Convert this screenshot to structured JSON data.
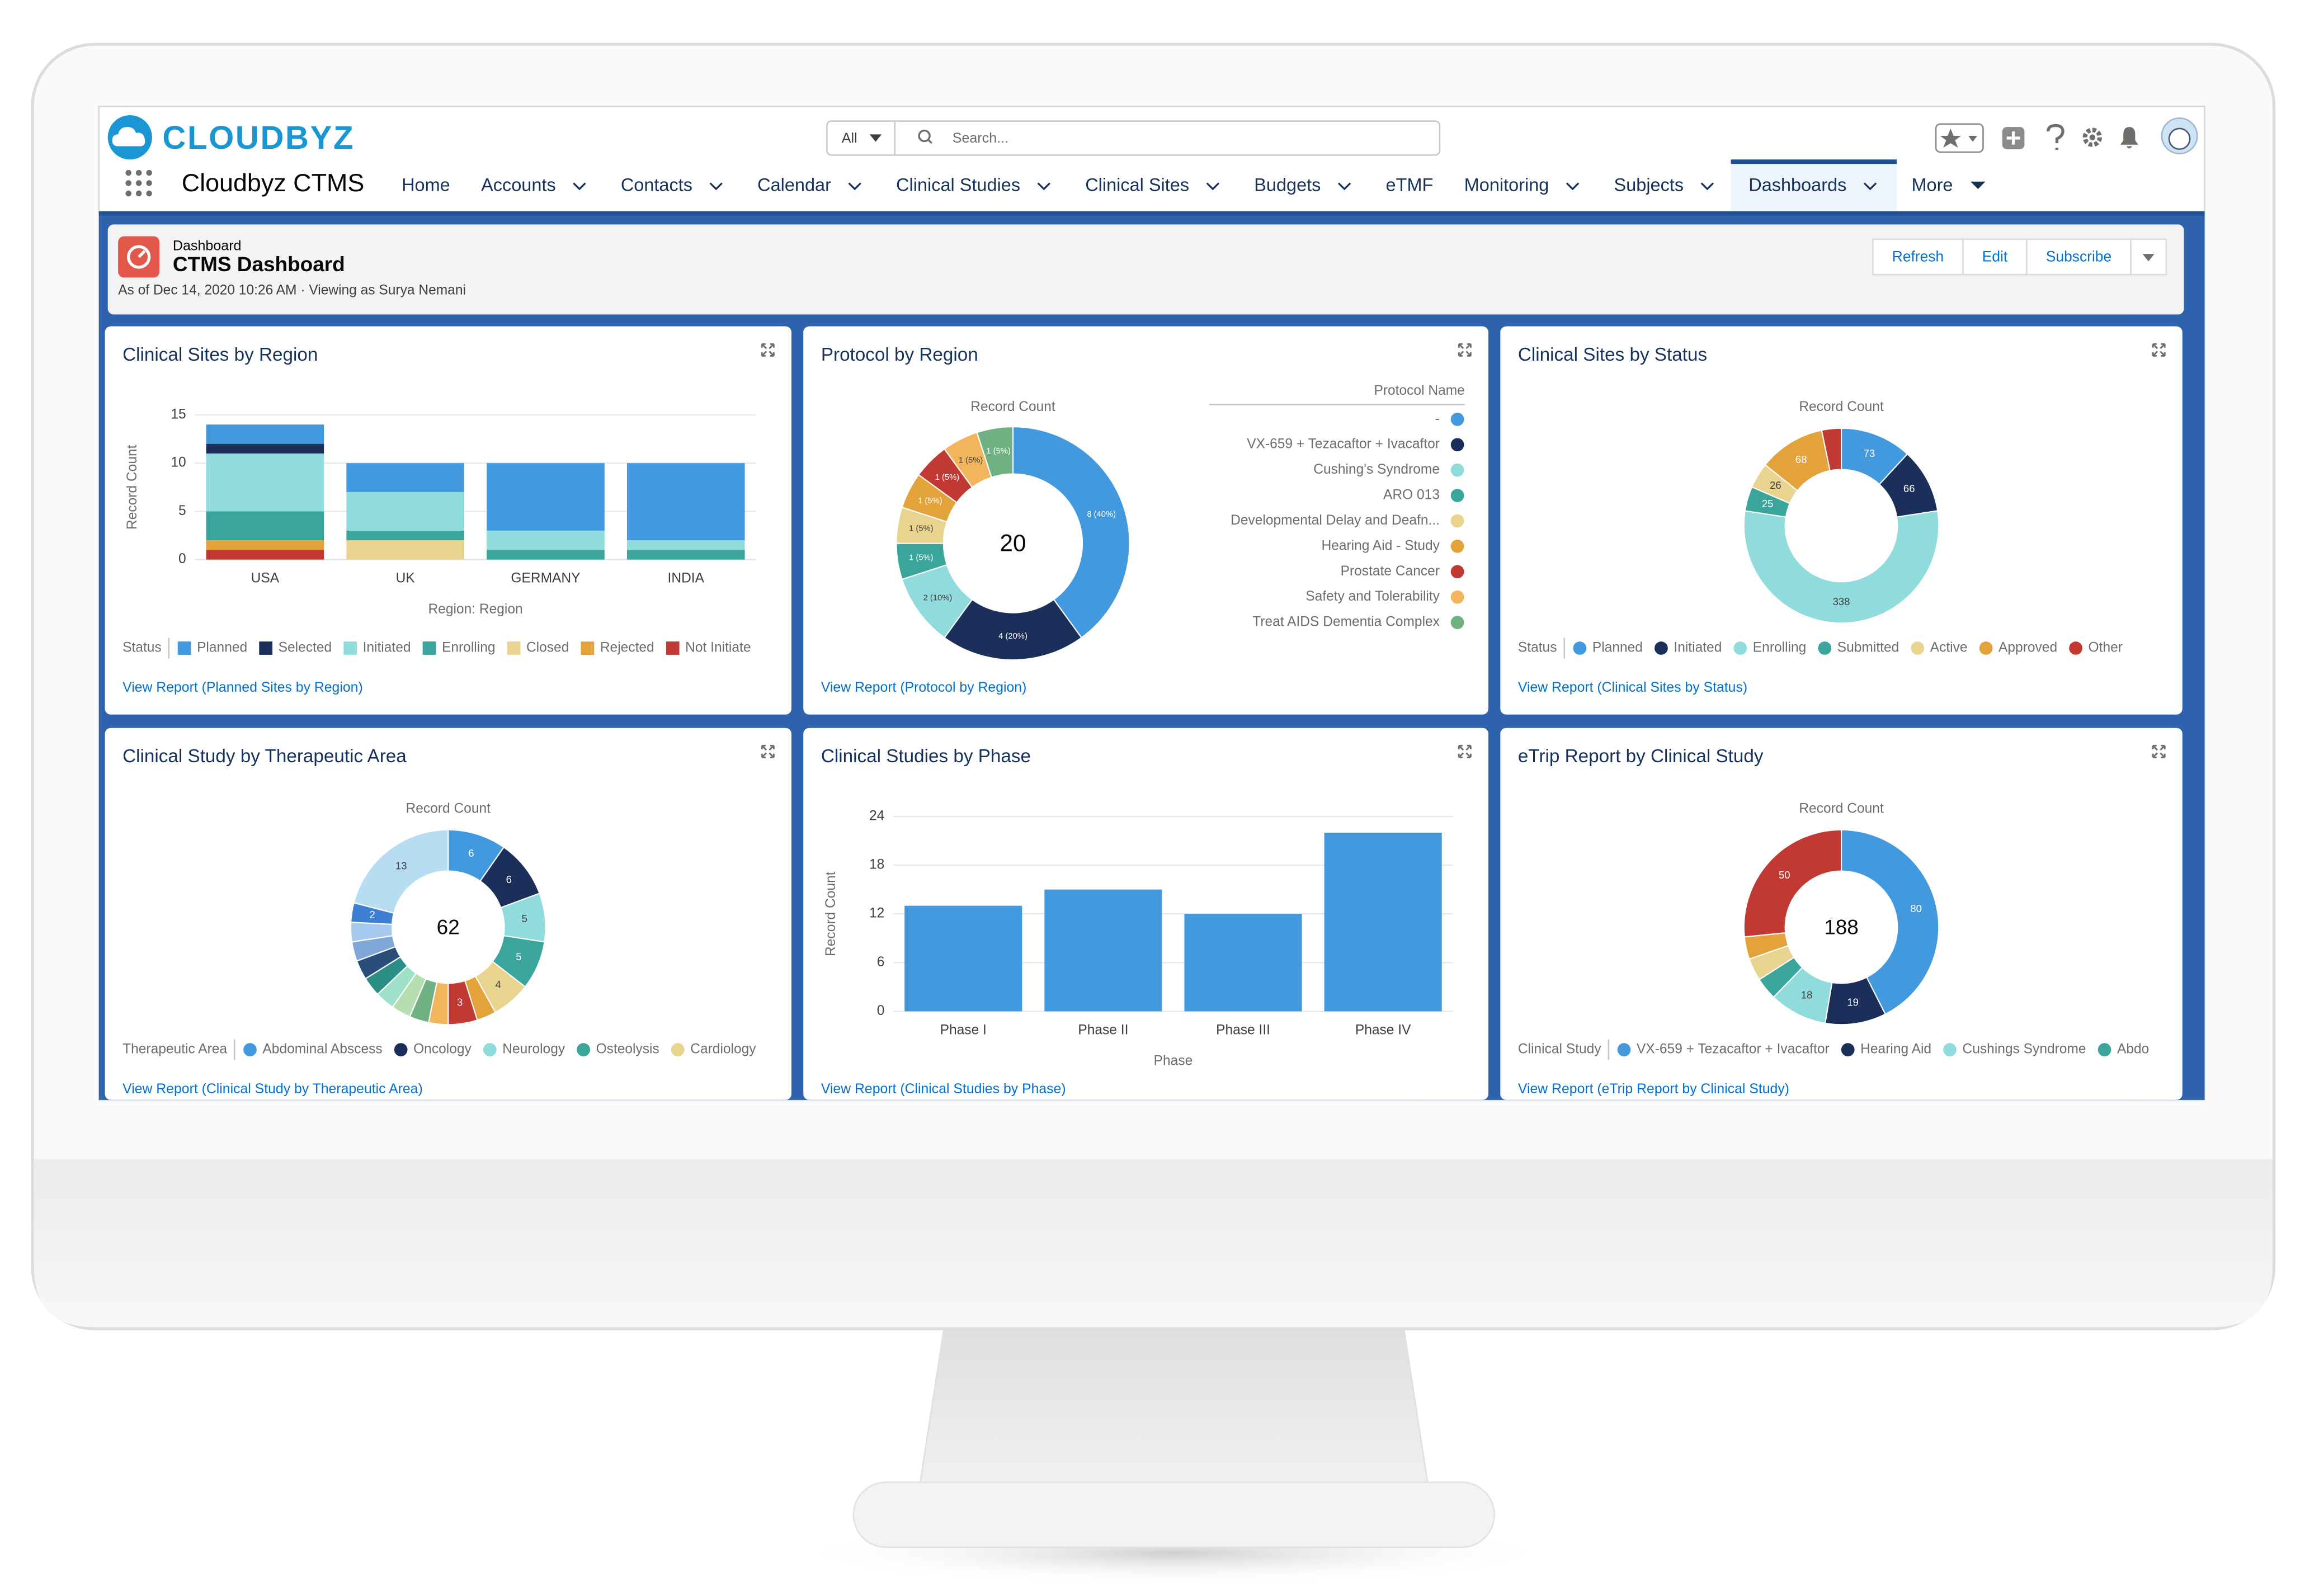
{
  "top_bar": {
    "logo": "CLOUDBYZ",
    "search_scope": "All",
    "search_placeholder": "Search...",
    "app_name": "Cloudbyz CTMS",
    "nav": [
      "Home",
      "Accounts",
      "Contacts",
      "Calendar",
      "Clinical Studies",
      "Clinical Sites",
      "Budgets",
      "eTMF",
      "Monitoring",
      "Subjects",
      "Dashboards",
      "More"
    ]
  },
  "dashboard_header": {
    "kicker": "Dashboard",
    "title": "CTMS Dashboard",
    "meta": "As of Dec 14, 2020 10:26 AM · Viewing as Surya Nemani",
    "buttons": [
      "Refresh",
      "Edit",
      "Subscribe"
    ]
  },
  "widgets": [
    {
      "title": "Clinical Sites by Region",
      "link": "View Report (Planned Sites by Region)",
      "chart": {
        "type": "bar",
        "stacked": true,
        "y_label": "Record Count",
        "x_label": "Region: Region",
        "legend_title": "Status",
        "categories": [
          "USA",
          "UK",
          "GERMANY",
          "INDIA"
        ],
        "series": [
          {
            "name": "Planned",
            "color": "#4299de",
            "values": [
              2,
              3,
              7,
              8
            ]
          },
          {
            "name": "Selected",
            "color": "#1b2f5a",
            "values": [
              1,
              0,
              0,
              0
            ]
          },
          {
            "name": "Initiated",
            "color": "#90dcdc",
            "values": [
              6,
              4,
              2,
              1
            ]
          },
          {
            "name": "Enrolling",
            "color": "#3aa59b",
            "values": [
              3,
              1,
              1,
              1
            ]
          },
          {
            "name": "Closed",
            "color": "#e8d48e",
            "values": [
              0,
              2,
              0,
              0
            ]
          },
          {
            "name": "Rejected",
            "color": "#e3a23a",
            "values": [
              1,
              0,
              0,
              0
            ]
          },
          {
            "name": "Not Initiate",
            "color": "#c23934",
            "values": [
              1,
              0,
              0,
              0
            ]
          }
        ],
        "ylim": [
          0,
          15
        ],
        "yticks": [
          0,
          5,
          10,
          15
        ],
        "grid": true
      }
    },
    {
      "title": "Protocol by Region",
      "link": "View Report (Protocol by Region)",
      "chart": {
        "type": "donut",
        "metric_label": "Record Count",
        "legend_title": "Protocol Name",
        "legend_position": "right",
        "total": 20,
        "categories": [
          "-",
          "VX-659 + Tezacaftor + Ivacaftor",
          "Cushing's Syndrome",
          "ARO 013",
          "Developmental Delay and Deafn...",
          "Hearing Aid - Study",
          "Prostate Cancer",
          "Safety and Tolerability",
          "Treat AIDS Dementia Complex"
        ],
        "values": [
          8,
          4,
          2,
          1,
          1,
          1,
          1,
          1,
          1
        ],
        "value_labels": [
          "8 (40%)",
          "4 (20%)",
          "2 (10%)",
          "1 (5%)",
          "1 (5%)",
          "1 (5%)",
          "1 (5%)",
          "1 (5%)",
          "1 (5%)"
        ],
        "colors": [
          "#4299de",
          "#1b2f5a",
          "#90dcdc",
          "#3aa59b",
          "#e8d48e",
          "#e3a23a",
          "#c23934",
          "#f3b45e",
          "#6fb182"
        ]
      }
    },
    {
      "title": "Clinical Sites by Status",
      "link": "View Report (Clinical Sites by Status)",
      "chart": {
        "type": "donut",
        "metric_label": "Record Count",
        "legend_title": "Status",
        "legend_position": "bottom",
        "categories": [
          "Planned",
          "Initiated",
          "Enrolling",
          "Submitted",
          "Active",
          "Approved",
          "Other"
        ],
        "values": [
          73,
          66,
          338,
          25,
          26,
          68,
          20
        ],
        "value_labels": [
          "73",
          "66",
          "338",
          "25",
          "26",
          "68",
          null
        ],
        "colors": [
          "#4299de",
          "#1b2f5a",
          "#90dcdc",
          "#3aa59b",
          "#e8d48e",
          "#e3a23a",
          "#c23934"
        ]
      }
    },
    {
      "title": "Clinical Study by Therapeutic Area",
      "link": "View Report (Clinical Study by Therapeutic Area)",
      "chart": {
        "type": "donut",
        "metric_label": "Record Count",
        "legend_title": "Therapeutic Area",
        "legend_position": "bottom",
        "total": 62,
        "categories": [
          "Abdominal Abscess",
          "Oncology",
          "Neurology",
          "Osteolysis",
          "Cardiology",
          null,
          null,
          null,
          null,
          null,
          null,
          null,
          null,
          null,
          null,
          null,
          null
        ],
        "values": [
          6,
          6,
          5,
          5,
          4,
          2,
          3,
          2,
          2,
          2,
          2,
          2,
          2,
          2,
          2,
          2,
          13
        ],
        "value_labels": [
          "6",
          "6",
          "5",
          "5",
          "4",
          null,
          "3",
          null,
          null,
          null,
          null,
          null,
          null,
          null,
          null,
          "2",
          "13"
        ],
        "colors": [
          "#4299de",
          "#1b2f5a",
          "#90dcdc",
          "#3aa59b",
          "#e8d48e",
          "#e3a23a",
          "#c23934",
          "#f3b45e",
          "#6fb182",
          "#b5dfb0",
          "#9fe0c8",
          "#2c8f86",
          "#2a4d7a",
          "#7fa8d8",
          "#a6c8ee",
          "#3d7fd0",
          "#b8dcf2"
        ]
      }
    },
    {
      "title": "Clinical Studies by Phase",
      "link": "View Report (Clinical Studies by Phase)",
      "chart": {
        "type": "bar",
        "y_label": "Record Count",
        "x_label": "Phase",
        "categories": [
          "Phase I",
          "Phase II",
          "Phase III",
          "Phase IV"
        ],
        "values": [
          13,
          15,
          12,
          22
        ],
        "color": "#4299de",
        "ylim": [
          0,
          24
        ],
        "yticks": [
          0,
          6,
          12,
          18,
          24
        ],
        "grid": true
      }
    },
    {
      "title": "eTrip Report by Clinical Study",
      "link": "View Report (eTrip Report by Clinical Study)",
      "chart": {
        "type": "donut",
        "metric_label": "Record Count",
        "legend_title": "Clinical Study",
        "legend_position": "bottom",
        "total": 188,
        "categories": [
          "VX-659 + Tezacaftor + Ivacaftor",
          "Hearing Aid",
          "Cushings Syndrome",
          "Abdo",
          null,
          null,
          null
        ],
        "values": [
          80,
          19,
          18,
          7,
          7,
          7,
          50
        ],
        "value_labels": [
          "80",
          "19",
          "18",
          null,
          null,
          null,
          "50"
        ],
        "colors": [
          "#4299de",
          "#1b2f5a",
          "#90dcdc",
          "#3aa59b",
          "#e8d48e",
          "#e3a23a",
          "#c23934"
        ]
      }
    }
  ]
}
